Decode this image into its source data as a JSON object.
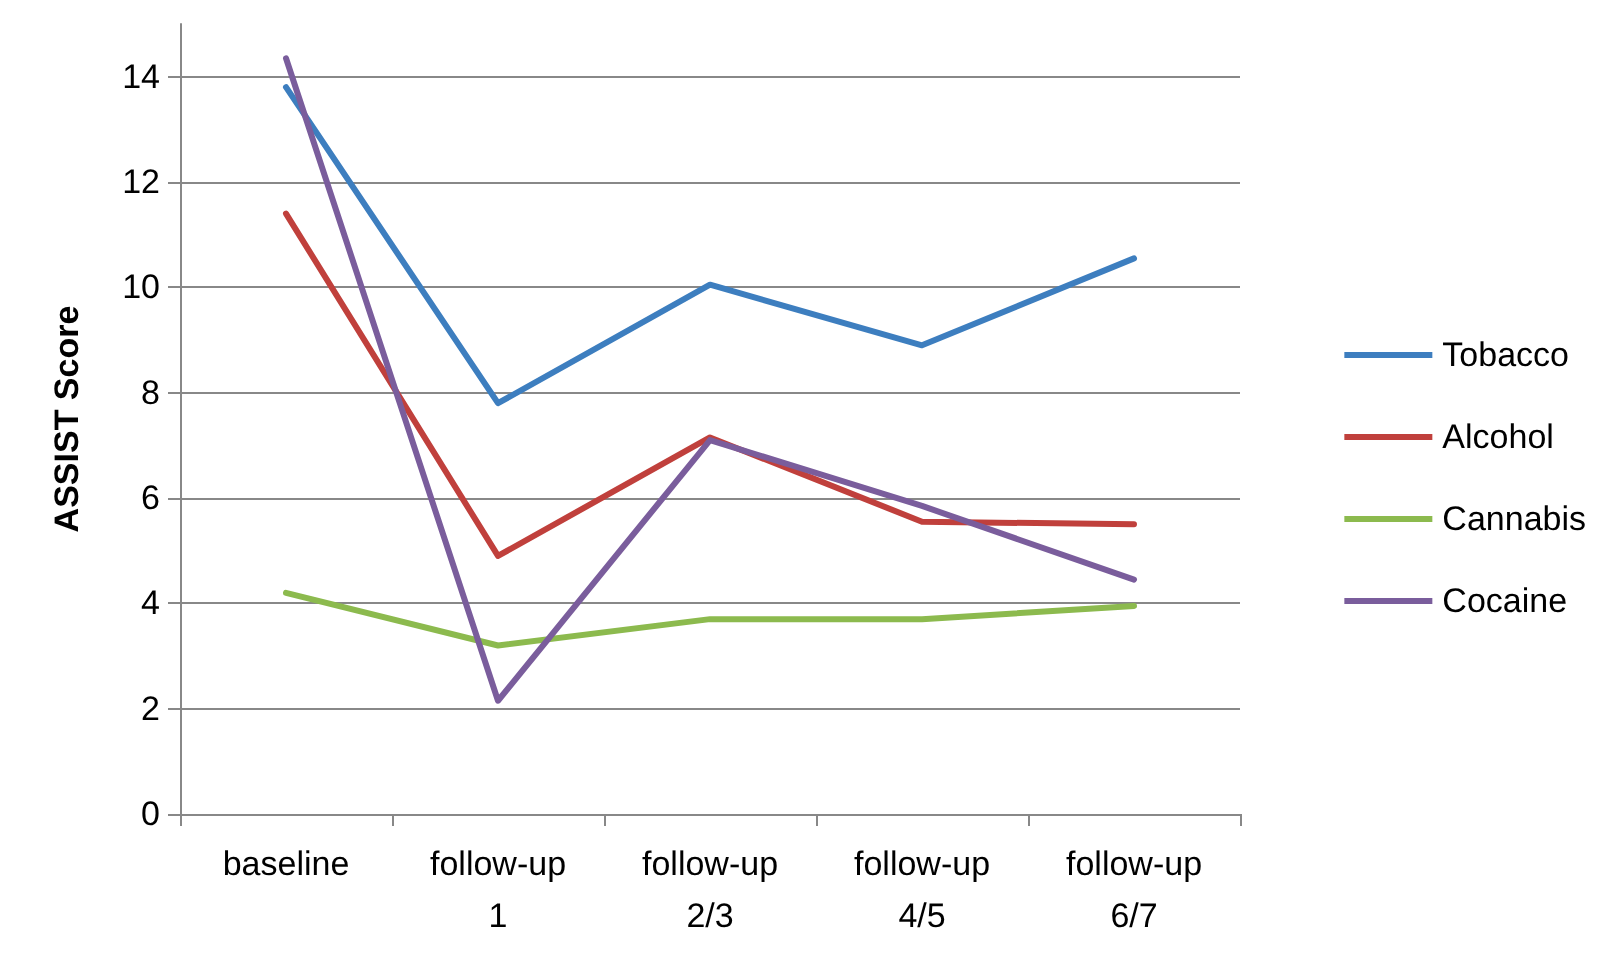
{
  "chart_data": {
    "type": "line",
    "ylabel": "ASSIST Score",
    "categories": [
      "baseline",
      "follow-up\n1",
      "follow-up\n2/3",
      "follow-up\n4/5",
      "follow-up\n6/7"
    ],
    "series": [
      {
        "name": "Tobacco",
        "color": "#3d7ebf",
        "values": [
          13.8,
          7.8,
          10.05,
          8.9,
          10.55
        ]
      },
      {
        "name": "Alcohol",
        "color": "#c0403c",
        "values": [
          11.4,
          4.9,
          7.15,
          5.55,
          5.5
        ]
      },
      {
        "name": "Cannabis",
        "color": "#8cba4e",
        "values": [
          4.2,
          3.2,
          3.7,
          3.7,
          3.95
        ]
      },
      {
        "name": "Cocaine",
        "color": "#7a5d9c",
        "values": [
          14.35,
          2.15,
          7.1,
          5.85,
          4.45
        ]
      }
    ],
    "ylim": [
      0,
      15
    ],
    "yticks": [
      0,
      2,
      4,
      6,
      8,
      10,
      12,
      14
    ],
    "grid": "y",
    "legend": "right",
    "marker": "none",
    "line_style": "solid"
  }
}
